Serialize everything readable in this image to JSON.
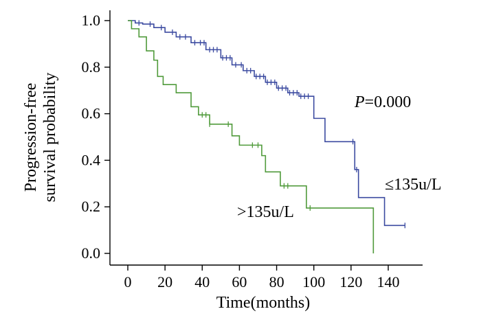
{
  "chart_data": {
    "type": "line",
    "subtype": "kaplan-meier step",
    "xlabel": "Time(months)",
    "ylabel_lines": [
      "Progression-free",
      "survival probability"
    ],
    "xlim": [
      -10,
      158
    ],
    "ylim": [
      -0.03,
      1.03
    ],
    "xticks": [
      0,
      20,
      40,
      60,
      80,
      100,
      120,
      140
    ],
    "yticks": [
      0.0,
      0.2,
      0.4,
      0.6,
      0.8,
      1.0
    ],
    "ytick_labels": [
      "0.0",
      "0.2",
      "0.4",
      "0.6",
      "0.8",
      "1.0"
    ],
    "grid": false,
    "annotation": {
      "prefix": "P",
      "value": "=0.000"
    },
    "series": [
      {
        "label_text": "≤135u/L",
        "color": "#3b4aa0",
        "steps": [
          [
            0,
            1.0
          ],
          [
            4,
            0.99
          ],
          [
            8,
            0.985
          ],
          [
            14,
            0.97
          ],
          [
            20,
            0.95
          ],
          [
            26,
            0.93
          ],
          [
            34,
            0.905
          ],
          [
            42,
            0.875
          ],
          [
            50,
            0.84
          ],
          [
            56,
            0.81
          ],
          [
            62,
            0.785
          ],
          [
            68,
            0.76
          ],
          [
            74,
            0.735
          ],
          [
            80,
            0.71
          ],
          [
            86,
            0.69
          ],
          [
            92,
            0.675
          ],
          [
            100,
            0.58
          ],
          [
            106,
            0.48
          ],
          [
            122,
            0.36
          ],
          [
            124,
            0.24
          ],
          [
            138,
            0.12
          ]
        ],
        "end_x": 149,
        "censored_x": [
          6,
          12,
          18,
          24,
          28,
          31,
          36,
          39,
          41,
          44,
          46,
          48,
          51,
          53,
          55,
          58,
          61,
          64,
          66,
          69,
          71,
          73,
          75,
          77,
          79,
          81,
          83,
          85,
          87,
          89,
          91,
          93,
          95,
          97,
          121,
          123,
          149
        ]
      },
      {
        "label_text": ">135u/L",
        "color": "#4f9a3a",
        "steps": [
          [
            0,
            1.0
          ],
          [
            2,
            0.965
          ],
          [
            6,
            0.93
          ],
          [
            10,
            0.87
          ],
          [
            14,
            0.83
          ],
          [
            16,
            0.76
          ],
          [
            19,
            0.725
          ],
          [
            26,
            0.69
          ],
          [
            34,
            0.63
          ],
          [
            38,
            0.595
          ],
          [
            44,
            0.555
          ],
          [
            56,
            0.505
          ],
          [
            60,
            0.465
          ],
          [
            72,
            0.42
          ],
          [
            74,
            0.35
          ],
          [
            82,
            0.29
          ],
          [
            96,
            0.195
          ],
          [
            132,
            0.0
          ]
        ],
        "end_x": 132,
        "censored_x": [
          40,
          42,
          44,
          54,
          67,
          70,
          84,
          86,
          98
        ]
      }
    ]
  }
}
